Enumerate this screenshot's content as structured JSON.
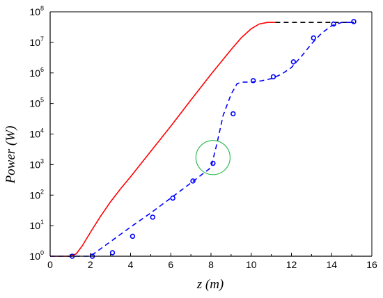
{
  "chart_data": {
    "type": "line",
    "xlabel": "z (m)",
    "ylabel": "Power (W)",
    "xlim": [
      0,
      16
    ],
    "ylim": [
      1,
      100000000
    ],
    "yscale": "log",
    "grid": false,
    "x_ticks": [
      "0",
      "2",
      "4",
      "6",
      "8",
      "10",
      "12",
      "14",
      "16"
    ],
    "y_ticks": [
      {
        "base": "10",
        "exp": "0"
      },
      {
        "base": "10",
        "exp": "1"
      },
      {
        "base": "10",
        "exp": "2"
      },
      {
        "base": "10",
        "exp": "3"
      },
      {
        "base": "10",
        "exp": "4"
      },
      {
        "base": "10",
        "exp": "5"
      },
      {
        "base": "10",
        "exp": "6"
      },
      {
        "base": "10",
        "exp": "7"
      },
      {
        "base": "10",
        "exp": "8"
      }
    ],
    "series": [
      {
        "style": "solid",
        "color": "#ff0000",
        "x": [
          0,
          0.5,
          1.0,
          1.3,
          1.6,
          2.0,
          2.5,
          3.0,
          3.5,
          4.0,
          5.0,
          6.0,
          7.0,
          8.0,
          9.0,
          9.5,
          10.0,
          10.4,
          10.8,
          11.2
        ],
        "y": [
          1,
          1,
          1,
          1.2,
          2.2,
          6,
          20,
          60,
          160,
          400,
          2700,
          18000,
          130000,
          900000,
          5800000,
          14000000,
          28000000,
          40000000,
          45000000,
          45000000
        ]
      },
      {
        "style": "dashed",
        "color": "#000000",
        "x": [
          11.2,
          12,
          13,
          14,
          15.1
        ],
        "y": [
          45000000,
          45000000,
          45000000,
          45000000,
          45000000
        ]
      },
      {
        "style": "dashed",
        "color": "#0000ff",
        "x": [
          0,
          1.0,
          2.0,
          3.0,
          4.0,
          5.0,
          6.0,
          7.0,
          8.0,
          8.3,
          8.6,
          9.0,
          9.3,
          9.6,
          10.0,
          10.5,
          11.0,
          11.5,
          12.0,
          12.5,
          13.0,
          13.5,
          14.0,
          14.5,
          15.1
        ],
        "y": [
          1,
          1,
          1,
          3,
          9,
          26,
          80,
          250,
          800,
          5000,
          40000,
          200000,
          450000,
          500000,
          500000,
          550000,
          650000,
          900000,
          1500000,
          3500000,
          9000000,
          20000000,
          35000000,
          45000000,
          45000000
        ]
      },
      {
        "style": "markers",
        "marker": "circle",
        "color": "#0000ff",
        "x": [
          1.1,
          2.1,
          3.1,
          4.1,
          5.1,
          6.1,
          7.1,
          8.1,
          9.1,
          10.1,
          11.1,
          12.1,
          13.1,
          14.1,
          15.1
        ],
        "y": [
          1,
          1,
          1.3,
          4.5,
          19,
          80,
          290,
          1100,
          46000,
          560000,
          750000,
          2300000,
          14000000,
          40000000,
          48000000
        ]
      }
    ],
    "annotations": [
      {
        "type": "circle",
        "color": "#33bb55",
        "center_x": 8.1,
        "center_y": 1700,
        "radius_x": 0.85
      }
    ]
  }
}
